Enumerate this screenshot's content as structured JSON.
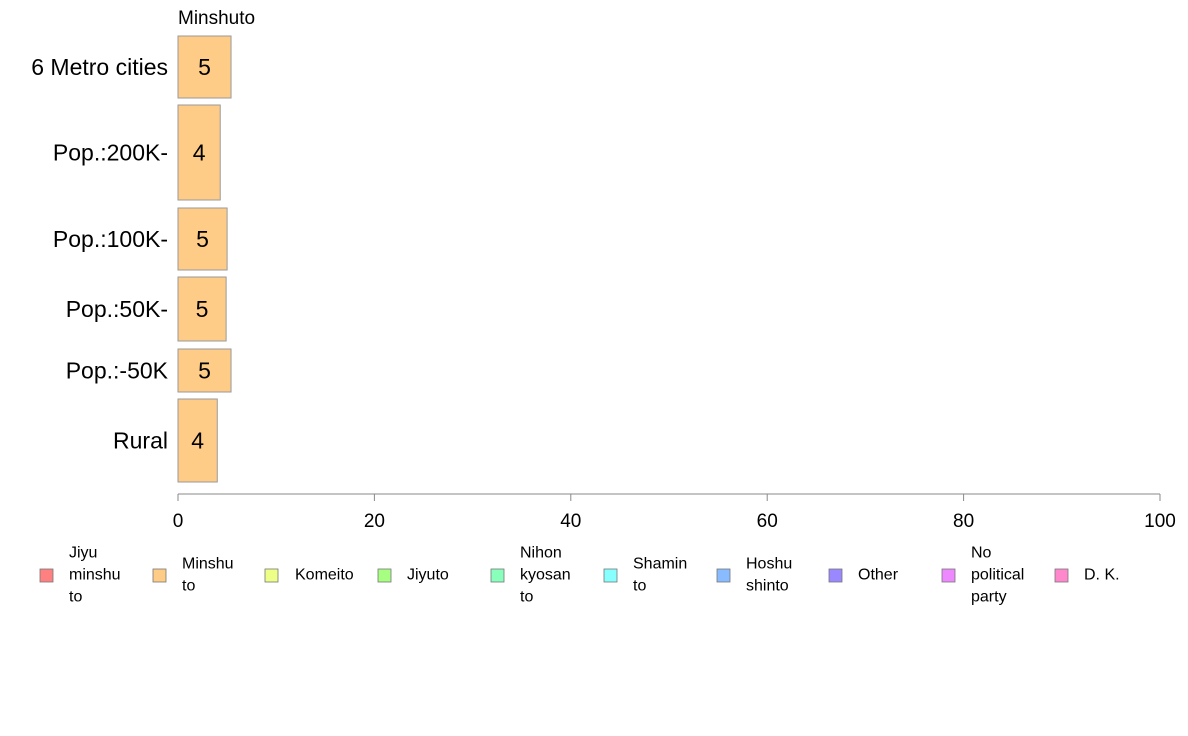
{
  "chart_data": {
    "type": "bar",
    "orientation": "horizontal",
    "title": "Minshuto",
    "categories": [
      "6 Metro cities",
      "Pop.:200K-",
      "Pop.:100K-",
      "Pop.:50K-",
      "Pop.:-50K",
      "Rural"
    ],
    "values": [
      5.4,
      4.3,
      5.0,
      4.9,
      5.4,
      4.0
    ],
    "value_labels": [
      "5",
      "4",
      "5",
      "5",
      "5",
      "4"
    ],
    "bar_color": "#FFCC88",
    "xlim": [
      0,
      100
    ],
    "xticks": [
      0,
      20,
      40,
      60,
      80,
      100
    ],
    "grid": false,
    "legend_position": "bottom",
    "legend": [
      {
        "lines": [
          "Jiyu",
          "minshu",
          "to"
        ],
        "color": "#FF8080"
      },
      {
        "lines": [
          "Minshu",
          "to"
        ],
        "color": "#FFCC88"
      },
      {
        "lines": [
          "Komeito"
        ],
        "color": "#EEFF88"
      },
      {
        "lines": [
          "Jiyuto"
        ],
        "color": "#A6FF80"
      },
      {
        "lines": [
          "Nihon",
          "kyosan",
          "to"
        ],
        "color": "#88FFBB"
      },
      {
        "lines": [
          "Shamin",
          "to"
        ],
        "color": "#88FFFF"
      },
      {
        "lines": [
          "Hoshu",
          "shinto"
        ],
        "color": "#88BBFF"
      },
      {
        "lines": [
          "Other"
        ],
        "color": "#9988FF"
      },
      {
        "lines": [
          "No",
          "political",
          "party"
        ],
        "color": "#EE88FF"
      },
      {
        "lines": [
          "D. K."
        ],
        "color": "#FF88CC"
      }
    ]
  }
}
